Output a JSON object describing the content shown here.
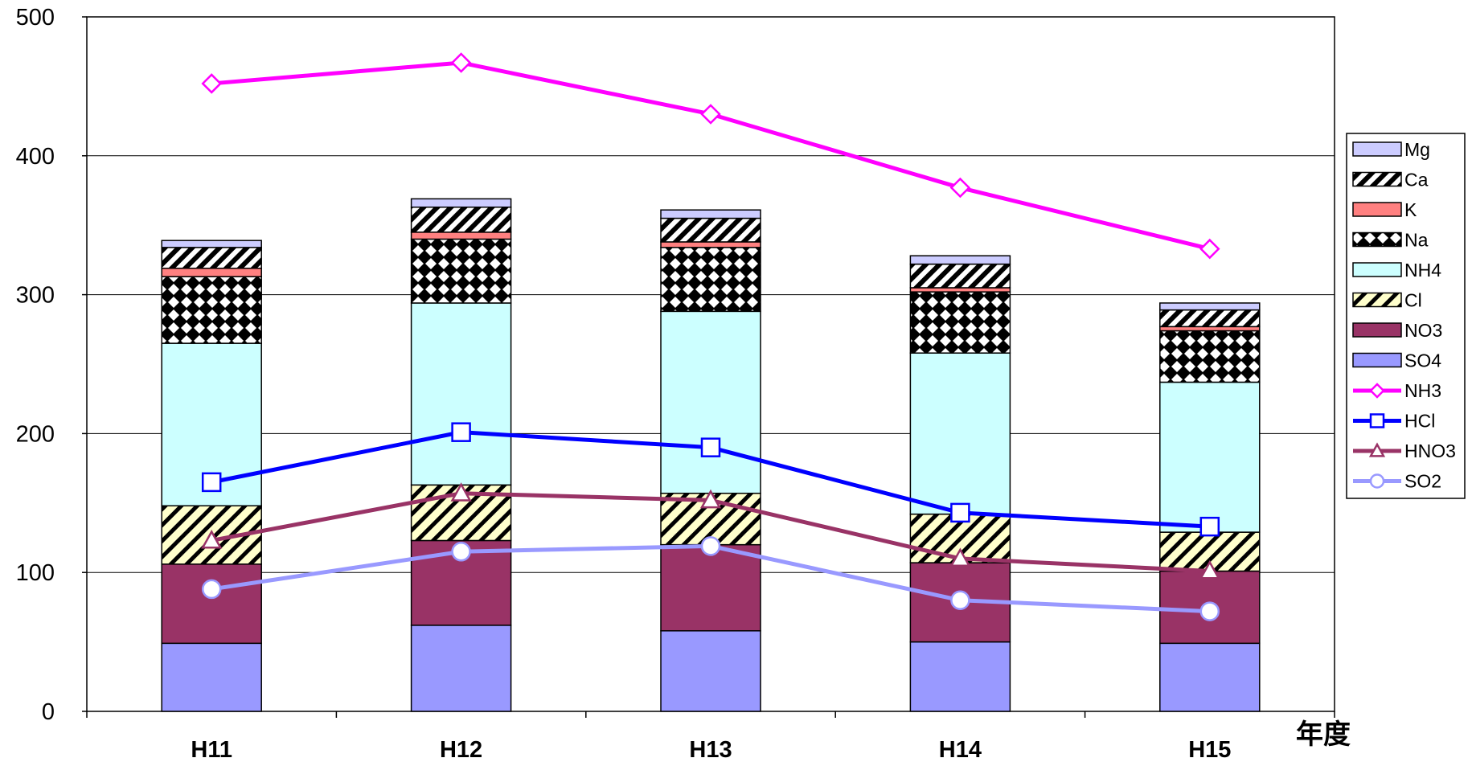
{
  "chart_data": {
    "type": "bar",
    "title": "",
    "xlabel": "年度",
    "ylabel": "",
    "ylim": [
      0,
      500
    ],
    "yticks": [
      "0",
      "100",
      "200",
      "300",
      "400",
      "500"
    ],
    "grid": true,
    "legend_position": "right",
    "categories": [
      "H11",
      "H12",
      "H13",
      "H14",
      "H15"
    ],
    "stacked_series": [
      {
        "name": "SO4",
        "pattern": "solid",
        "color": "#9999ff",
        "values": [
          49,
          62,
          58,
          50,
          49
        ]
      },
      {
        "name": "NO3",
        "pattern": "solid",
        "color": "#993366",
        "values": [
          57,
          61,
          62,
          57,
          52
        ]
      },
      {
        "name": "Cl",
        "pattern": "hatch-yellow",
        "color": "#ffffcc",
        "values": [
          42,
          40,
          37,
          35,
          28
        ]
      },
      {
        "name": "NH4",
        "pattern": "solid",
        "color": "#ccffff",
        "values": [
          117,
          131,
          131,
          116,
          108
        ]
      },
      {
        "name": "Na",
        "pattern": "checker",
        "color": "#000000",
        "values": [
          48,
          46,
          46,
          44,
          37
        ]
      },
      {
        "name": "K",
        "pattern": "solid",
        "color": "#ff8080",
        "values": [
          6,
          5,
          4,
          3,
          3
        ]
      },
      {
        "name": "Ca",
        "pattern": "hatch-black",
        "color": "#000000",
        "values": [
          15,
          18,
          17,
          17,
          12
        ]
      },
      {
        "name": "Mg",
        "pattern": "solid",
        "color": "#ccccff",
        "values": [
          5,
          6,
          6,
          6,
          5
        ]
      }
    ],
    "line_series": [
      {
        "name": "NH3",
        "color": "#ff00ff",
        "marker": "diamond",
        "values": [
          452,
          467,
          430,
          377,
          333
        ]
      },
      {
        "name": "HCl",
        "color": "#0000ff",
        "marker": "square",
        "values": [
          165,
          201,
          190,
          143,
          133
        ]
      },
      {
        "name": "HNO3",
        "color": "#993366",
        "marker": "triangle",
        "values": [
          123,
          157,
          152,
          110,
          101
        ]
      },
      {
        "name": "SO2",
        "color": "#9999ff",
        "marker": "circle",
        "values": [
          88,
          115,
          119,
          80,
          72
        ]
      }
    ],
    "legend_order": [
      "Mg",
      "Ca",
      "K",
      "Na",
      "NH4",
      "Cl",
      "NO3",
      "SO4",
      "NH3",
      "HCl",
      "HNO3",
      "SO2"
    ]
  }
}
